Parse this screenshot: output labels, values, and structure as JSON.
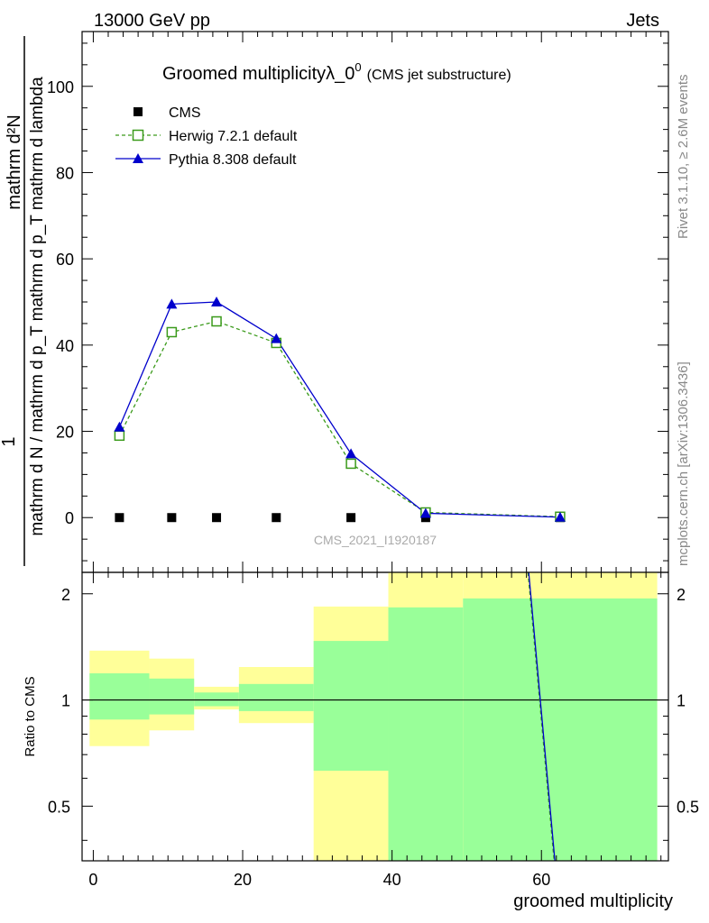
{
  "header": {
    "left": "13000 GeV pp",
    "right": "Jets"
  },
  "side_labels": {
    "rivet": "Rivet 3.1.10, ≥ 2.6M events",
    "mcplots": "mcplots.cern.ch [arXiv:1306.3436]"
  },
  "chart_data": [
    {
      "type": "line",
      "title": "Groomed multiplicityλ_0",
      "title_superscript": "0",
      "subtitle": "(CMS jet substructure)",
      "watermark": "CMS_2021_I1920187",
      "ylabel_numerator": "mathrm d²N",
      "ylabel_denominator": "mathrm d N / mathrm d p_T mathrm d p_T mathrm d lambda",
      "ylabel_prefix": "1",
      "xlim": [
        -1.5,
        77
      ],
      "ylim": [
        -12.7,
        112.7
      ],
      "yticks": [
        0,
        20,
        40,
        60,
        80,
        100
      ],
      "legend_position": "top-left",
      "x": [
        3.5,
        10.5,
        16.5,
        24.5,
        34.5,
        44.5,
        62.5
      ],
      "series": [
        {
          "name": "CMS",
          "marker": "square",
          "color": "#000000",
          "values": [
            0,
            0,
            0,
            0,
            0,
            0,
            0
          ]
        },
        {
          "name": "Herwig 7.2.1 default",
          "marker": "open-square",
          "color": "#3a9a1a",
          "dashed": true,
          "values": [
            19,
            43,
            45.5,
            40.5,
            12.5,
            1.2,
            0.2
          ]
        },
        {
          "name": "Pythia 8.308 default",
          "marker": "triangle",
          "color": "#0000cc",
          "dashed": false,
          "values": [
            21,
            49.5,
            50,
            41.5,
            14.8,
            1.0,
            0.1
          ]
        }
      ]
    },
    {
      "type": "area",
      "ylabel": "Ratio to CMS",
      "xlabel": "groomed multiplicity",
      "xlim": [
        -1.5,
        77
      ],
      "ylim": [
        0.35,
        2.3
      ],
      "yscale": "log",
      "xticks": [
        0,
        20,
        40,
        60
      ],
      "yticks": [
        0.5,
        1,
        2
      ],
      "bins": [
        [
          -0.5,
          7.5
        ],
        [
          7.5,
          13.5
        ],
        [
          13.5,
          19.5
        ],
        [
          19.5,
          29.5
        ],
        [
          29.5,
          39.5
        ],
        [
          39.5,
          49.5
        ],
        [
          49.5,
          75.5
        ]
      ],
      "band_yellow": [
        [
          0.74,
          1.38
        ],
        [
          0.82,
          1.31
        ],
        [
          0.94,
          1.09
        ],
        [
          0.86,
          1.24
        ],
        [
          0.35,
          1.84
        ],
        [
          0.35,
          2.3
        ],
        [
          0.35,
          2.3
        ]
      ],
      "band_green": [
        [
          0.88,
          1.19
        ],
        [
          0.91,
          1.15
        ],
        [
          0.96,
          1.05
        ],
        [
          0.93,
          1.11
        ],
        [
          0.63,
          1.47
        ],
        [
          0.35,
          1.83
        ],
        [
          0.35,
          1.94
        ]
      ],
      "ratio_lines": [
        {
          "name": "Herwig 7.2.1 default",
          "color": "#3a9a1a",
          "dashed": true,
          "x": [
            58.2,
            61.7
          ],
          "values": [
            2.3,
            0.35
          ]
        },
        {
          "name": "Pythia 8.308 default",
          "color": "#0000cc",
          "dashed": false,
          "x": [
            58.3,
            61.8
          ],
          "values": [
            2.3,
            0.35
          ]
        }
      ],
      "colors": {
        "yellow": "#ffff99",
        "green": "#99ff99"
      }
    }
  ]
}
